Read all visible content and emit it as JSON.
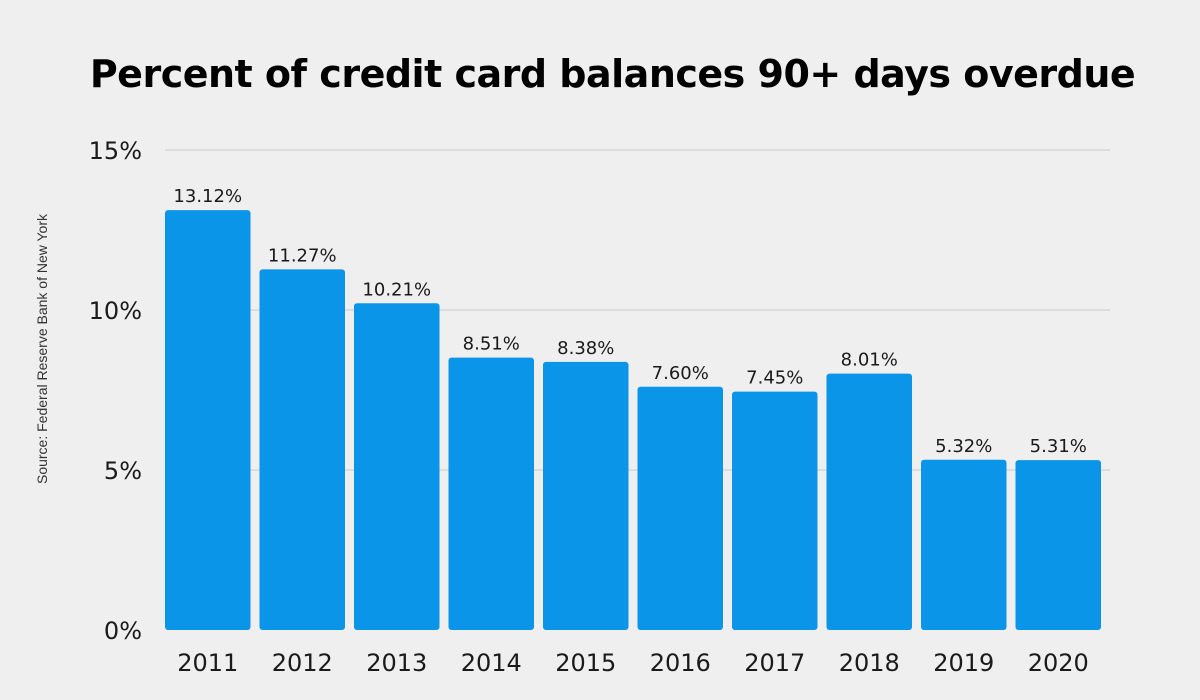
{
  "chart_data": {
    "type": "bar",
    "title": "Percent of credit card balances 90+ days overdue",
    "source": "Source: Federal Reserve Bank of New York",
    "categories": [
      "2011",
      "2012",
      "2013",
      "2014",
      "2015",
      "2016",
      "2017",
      "2018",
      "2019",
      "2020"
    ],
    "values": [
      13.12,
      11.27,
      10.21,
      8.51,
      8.38,
      7.6,
      7.45,
      8.01,
      5.32,
      5.31
    ],
    "value_labels": [
      "13.12%",
      "11.27%",
      "10.21%",
      "8.51%",
      "8.38%",
      "7.60%",
      "7.45%",
      "8.01%",
      "5.32%",
      "5.31%"
    ],
    "xlabel": "",
    "ylabel": "",
    "ylim": [
      0,
      15
    ],
    "yticks": [
      0,
      5,
      10,
      15
    ],
    "ytick_labels": [
      "0%",
      "5%",
      "10%",
      "15%"
    ],
    "grid": true,
    "legend": "none",
    "bar_color": "#0b95e8",
    "grid_color": "#c8c8c8"
  }
}
